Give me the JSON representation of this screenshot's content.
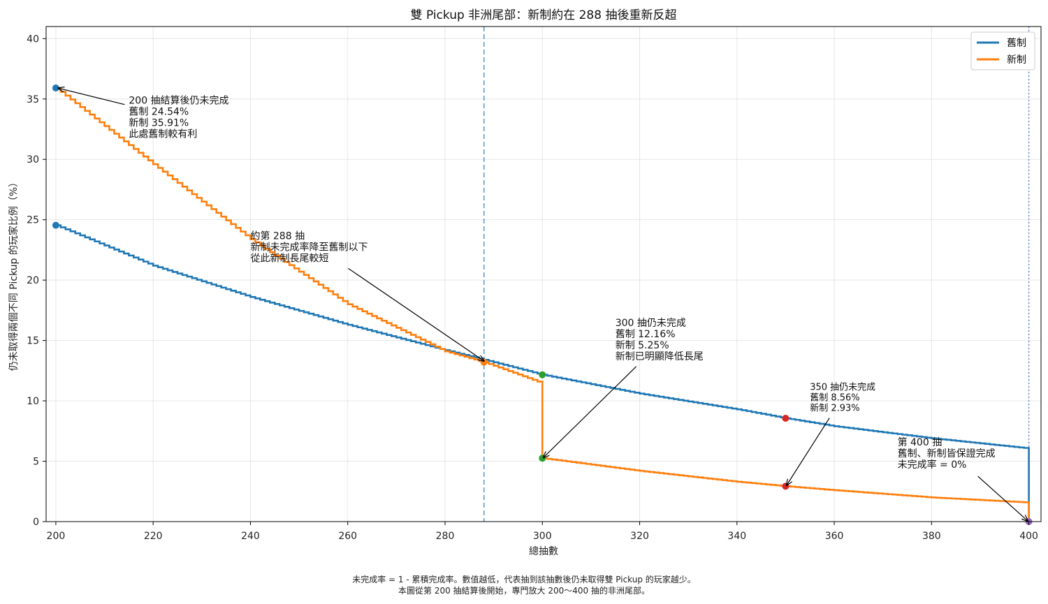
{
  "chart_data": {
    "type": "line",
    "title": "雙 Pickup 非洲尾部：新制約在 288 抽後重新反超",
    "xlabel": "總抽數",
    "ylabel": "仍未取得兩個不同 Pickup 的玩家比例（%）",
    "xlim": [
      198,
      402.5
    ],
    "ylim": [
      0,
      41
    ],
    "xticks": [
      200,
      220,
      240,
      260,
      280,
      300,
      320,
      340,
      360,
      380,
      400
    ],
    "yticks": [
      0,
      5,
      10,
      15,
      20,
      25,
      30,
      35,
      40
    ],
    "grid": true,
    "legend_position": "top-right",
    "series": [
      {
        "name": "舊制",
        "color": "#1f77b4",
        "points": [
          [
            200,
            24.54
          ],
          [
            220,
            21.2
          ],
          [
            240,
            18.6
          ],
          [
            260,
            16.3
          ],
          [
            280,
            14.2
          ],
          [
            288,
            13.4
          ],
          [
            300,
            12.16
          ],
          [
            320,
            10.6
          ],
          [
            340,
            9.3
          ],
          [
            350,
            8.56
          ],
          [
            360,
            7.9
          ],
          [
            380,
            6.9
          ],
          [
            399,
            6.1
          ],
          [
            400,
            0
          ]
        ]
      },
      {
        "name": "新制",
        "color": "#ff7f0e",
        "points": [
          [
            200,
            35.91
          ],
          [
            220,
            29.6
          ],
          [
            240,
            23.4
          ],
          [
            260,
            18.0
          ],
          [
            280,
            14.1
          ],
          [
            288,
            13.2
          ],
          [
            299,
            11.6
          ],
          [
            300,
            5.25
          ],
          [
            320,
            4.2
          ],
          [
            340,
            3.3
          ],
          [
            350,
            2.93
          ],
          [
            360,
            2.6
          ],
          [
            380,
            2.0
          ],
          [
            399,
            1.6
          ],
          [
            400,
            0
          ]
        ]
      }
    ],
    "vlines": [
      {
        "x": 288,
        "style": "dashed",
        "color": "#5b9bd5"
      },
      {
        "x": 400,
        "style": "dotted",
        "color": "#6f8fd8"
      }
    ],
    "markers": [
      {
        "x": 200,
        "y": 35.91,
        "color": "#1f77b4"
      },
      {
        "x": 200,
        "y": 24.54,
        "color": "#1f77b4"
      },
      {
        "x": 288,
        "y": 13.2,
        "color": "#ff7f0e"
      },
      {
        "x": 300,
        "y": 12.16,
        "color": "#2ca02c"
      },
      {
        "x": 300,
        "y": 5.25,
        "color": "#2ca02c"
      },
      {
        "x": 350,
        "y": 8.56,
        "color": "#d62728"
      },
      {
        "x": 350,
        "y": 2.93,
        "color": "#d62728"
      },
      {
        "x": 400,
        "y": 0,
        "color": "#9467bd"
      }
    ],
    "annotations": [
      {
        "lines": [
          "200 抽結算後仍未完成",
          "舊制 24.54%",
          "新制 35.91%",
          "此處舊制較有利"
        ],
        "text_x": 215,
        "text_y": 34.6,
        "target_x": 200.5,
        "target_y": 35.9,
        "size": "normal"
      },
      {
        "lines": [
          "約第 288 抽",
          "新制未完成率降至舊制以下",
          "從此新制長尾較短"
        ],
        "text_x": 240,
        "text_y": 23.4,
        "target_x": 288,
        "target_y": 13.3,
        "size": "normal"
      },
      {
        "lines": [
          "300 抽仍未完成",
          "舊制 12.16%",
          "新制 5.25%",
          "新制已明顯降低長尾"
        ],
        "text_x": 315,
        "text_y": 16.2,
        "target_x": 300.2,
        "target_y": 5.3,
        "size": "normal"
      },
      {
        "lines": [
          "350 抽仍未完成",
          "舊制 8.56%",
          "新制 2.93%"
        ],
        "text_x": 355,
        "text_y": 10.9,
        "target_x": 350.2,
        "target_y": 3.0,
        "size": "small"
      },
      {
        "lines": [
          "第 400 抽",
          "舊制、新制皆保證完成",
          "未完成率 = 0%"
        ],
        "text_x": 373,
        "text_y": 6.3,
        "target_x": 399.8,
        "target_y": 0.05,
        "size": "normal"
      }
    ],
    "footnote": [
      "未完成率 = 1 - 累積完成率。數值越低，代表抽到該抽數後仍未取得雙 Pickup 的玩家越少。",
      "本圖從第 200 抽結算後開始，專門放大 200～400 抽的非洲尾部。"
    ]
  }
}
